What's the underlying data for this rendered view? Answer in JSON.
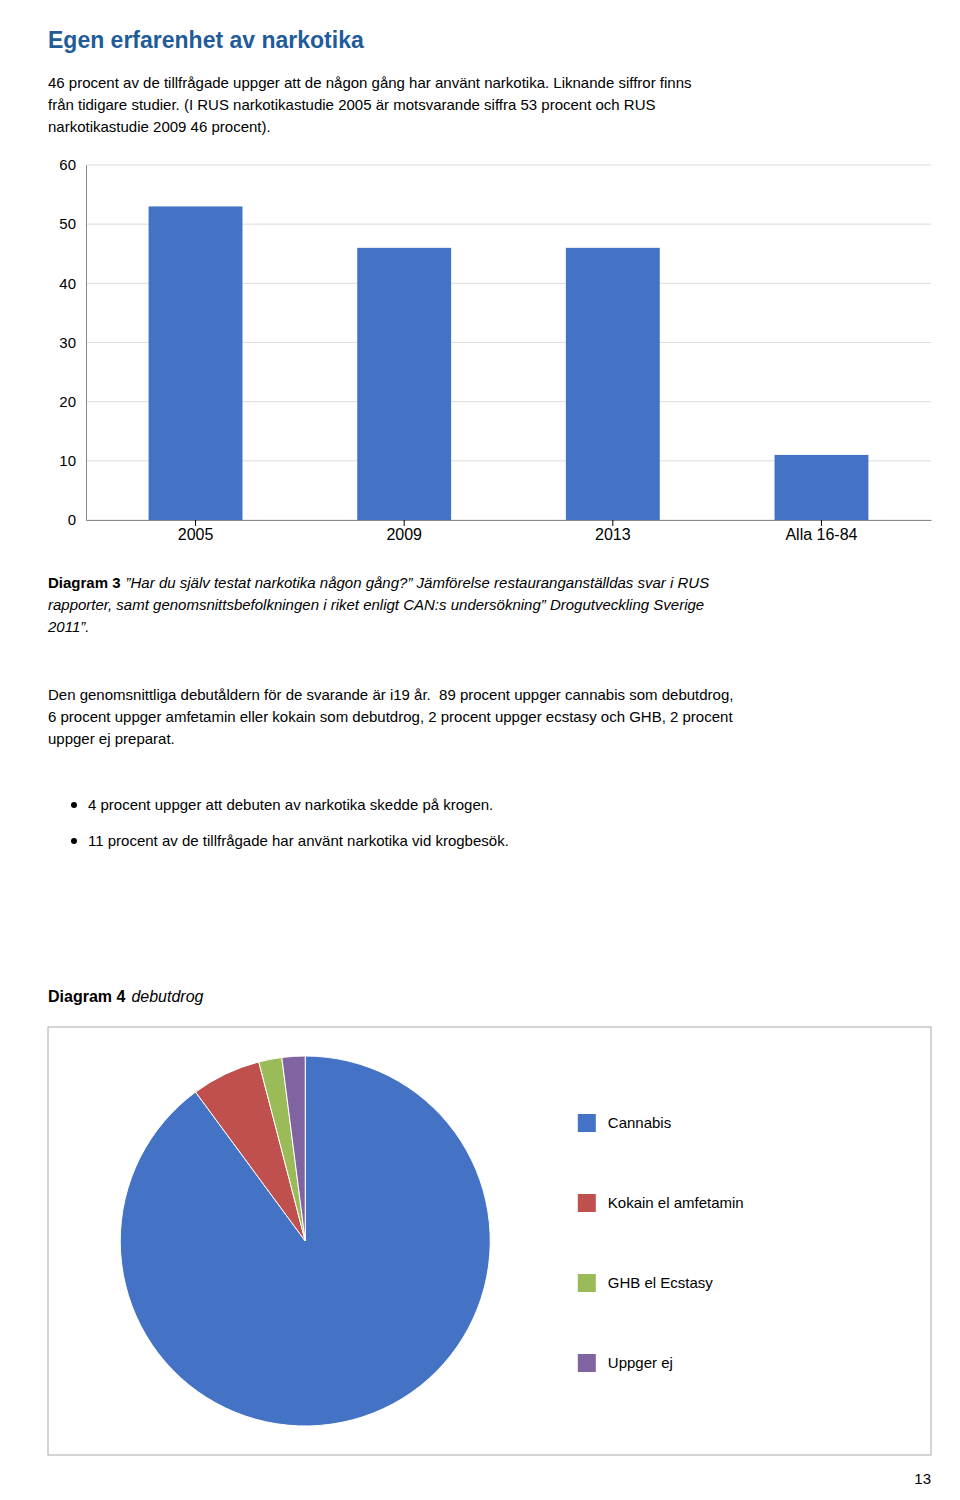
{
  "title": "Egen erfarenhet av narkotika",
  "body_text_1": [
    "46 procent av de tillfrågade uppger att de någon gång har använt narkotika. Liknande siffror finns",
    "från tidigare studier. (I RUS narkotikastudie 2005 är motsvarande siffra 53 procent och RUS",
    "narkotikastudie 2009 46 procent)."
  ],
  "body_text_2": [
    "Den genomsnittliga debutåldern för de svarande är i19 år.  89 procent uppger cannabis som debutdrog,",
    "6 procent uppger amfetamin eller kokain som debutdrog, 2 procent uppger ecstasy och GHB, 2 procent",
    "uppger ej preparat."
  ],
  "bullets": [
    "4 procent uppger att debuten av narkotika skedde på krogen.",
    "11 procent av de tillfrågade har använt narkotika vid krogbesök."
  ],
  "page_number": "13",
  "chart_data": [
    {
      "type": "bar",
      "title": "Diagram 3",
      "annotations": [
        "”Har du själv testat narkotika någon gång?” Jämförelse restauranganställdas svar i RUS",
        "rapporter, samt genomsnittsbefolkningen i riket enligt CAN:s undersökning” Drogutveckling Sverige",
        "2011”."
      ],
      "categories": [
        "2005",
        "2009",
        "2013",
        "Alla 16-84"
      ],
      "values": [
        53,
        46,
        46,
        11
      ],
      "color": "#4472C4",
      "ylim": [
        0,
        60
      ],
      "yticks": [
        0,
        10,
        20,
        30,
        40,
        50,
        60
      ],
      "grid": true
    },
    {
      "type": "pie",
      "title": "Diagram 4",
      "subtitle": "debutdrog",
      "categories": [
        "Cannabis",
        "Kokain el amfetamin",
        "GHB el Ecstasy",
        "Uppger ej"
      ],
      "values": [
        89,
        6,
        2,
        2
      ],
      "colors": [
        "#4472C4",
        "#C0504D",
        "#9BBB59",
        "#8064A2"
      ],
      "legend": "right"
    }
  ]
}
